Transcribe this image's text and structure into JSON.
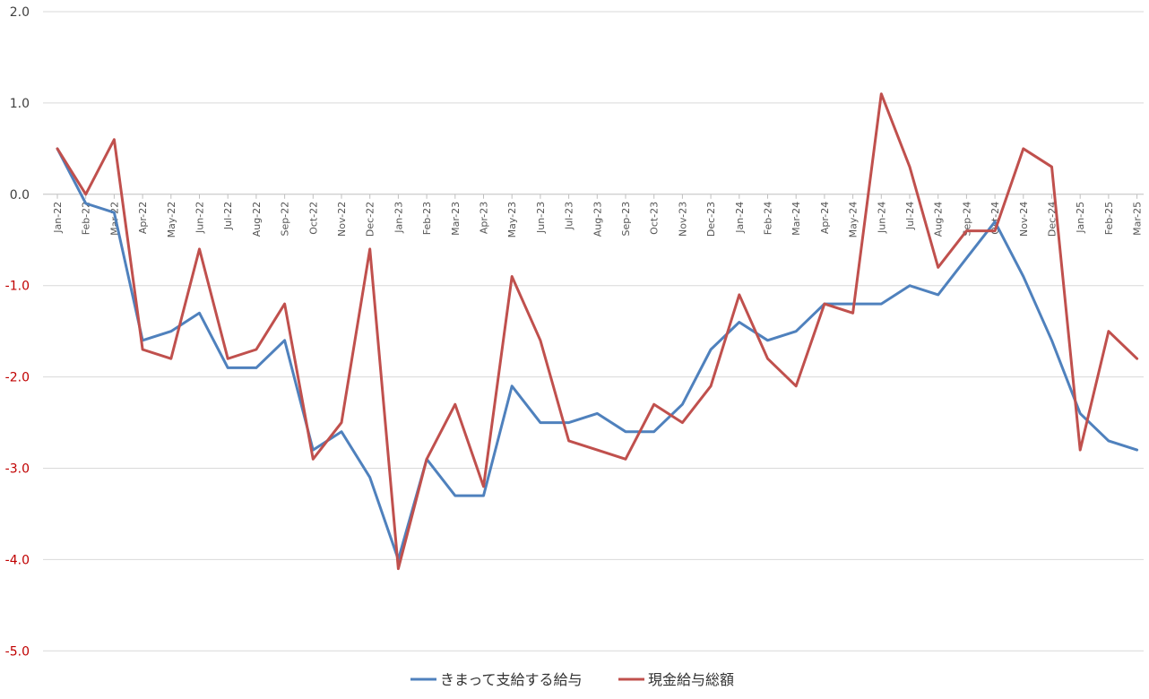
{
  "chart_data": {
    "type": "line",
    "title": "",
    "xlabel": "",
    "ylabel": "",
    "ylim": [
      -5.0,
      2.0
    ],
    "yticks": [
      "2.0",
      "1.0",
      "0.0",
      "-1.0",
      "-2.0",
      "-3.0",
      "-4.0",
      "-5.0"
    ],
    "ytick_values": [
      2,
      1,
      0,
      -1,
      -2,
      -3,
      -4,
      -5
    ],
    "negative_tick_color": "#C00000",
    "positive_tick_color": "#404040",
    "grid": true,
    "legend_position": "bottom",
    "categories": [
      "Jan-22",
      "Feb-22",
      "Mar-22",
      "Apr-22",
      "May-22",
      "Jun-22",
      "Jul-22",
      "Aug-22",
      "Sep-22",
      "Oct-22",
      "Nov-22",
      "Dec-22",
      "Jan-23",
      "Feb-23",
      "Mar-23",
      "Apr-23",
      "May-23",
      "Jun-23",
      "Jul-23",
      "Aug-23",
      "Sep-23",
      "Oct-23",
      "Nov-23",
      "Dec-23",
      "Jan-24",
      "Feb-24",
      "Mar-24",
      "Apr-24",
      "May-24",
      "Jun-24",
      "Jul-24",
      "Aug-24",
      "Sep-24",
      "Oct-24",
      "Nov-24",
      "Dec-24",
      "Jan-25",
      "Feb-25",
      "Mar-25"
    ],
    "series": [
      {
        "name": "きまって支給する給与",
        "color": "#4F81BD",
        "values": [
          0.5,
          -0.1,
          -0.2,
          -1.6,
          -1.5,
          -1.3,
          -1.9,
          -1.9,
          -1.6,
          -2.8,
          -2.6,
          -3.1,
          -4.0,
          -2.9,
          -3.3,
          -3.3,
          -2.1,
          -2.5,
          -2.5,
          -2.4,
          -2.6,
          -2.6,
          -2.3,
          -1.7,
          -1.4,
          -1.6,
          -1.5,
          -1.2,
          -1.2,
          -1.2,
          -1.0,
          -1.1,
          -0.7,
          -0.3,
          -0.9,
          -1.6,
          -2.4,
          -2.7,
          -2.8
        ]
      },
      {
        "name": "現金給与総額",
        "color": "#C0504D",
        "values": [
          0.5,
          0.0,
          0.6,
          -1.7,
          -1.8,
          -0.6,
          -1.8,
          -1.7,
          -1.2,
          -2.9,
          -2.5,
          -0.6,
          -4.1,
          -2.9,
          -2.3,
          -3.2,
          -0.9,
          -1.6,
          -2.7,
          -2.8,
          -2.9,
          -2.3,
          -2.5,
          -2.1,
          -1.1,
          -1.8,
          -2.1,
          -1.2,
          -1.3,
          1.1,
          0.3,
          -0.8,
          -0.4,
          -0.4,
          0.5,
          0.3,
          -2.8,
          -1.5,
          -1.8
        ]
      }
    ]
  }
}
